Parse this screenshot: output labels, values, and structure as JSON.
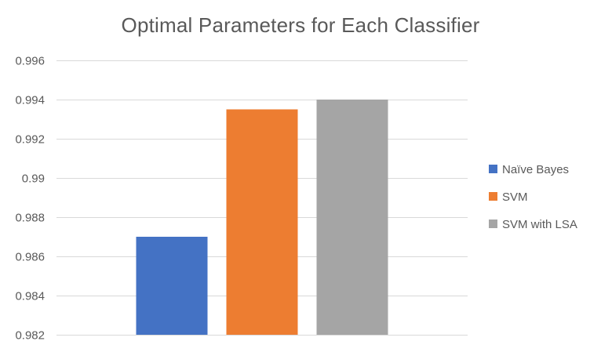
{
  "chart_data": {
    "type": "bar",
    "title": "Optimal Parameters for Each Classifier",
    "xlabel": "",
    "ylabel": "",
    "categories": [
      ""
    ],
    "series": [
      {
        "name": "Naïve Bayes",
        "values": [
          0.987
        ],
        "color": "#4472C4"
      },
      {
        "name": "SVM",
        "values": [
          0.9935
        ],
        "color": "#ED7D31"
      },
      {
        "name": "SVM with LSA",
        "values": [
          0.994
        ],
        "color": "#A5A5A5"
      }
    ],
    "ylim": [
      0.982,
      0.996
    ],
    "yticks": [
      0.982,
      0.984,
      0.986,
      0.988,
      0.99,
      0.992,
      0.994,
      0.996
    ],
    "ytick_labels": [
      "0.982",
      "0.984",
      "0.986",
      "0.988",
      "0.99",
      "0.992",
      "0.994",
      "0.996"
    ],
    "grid": true,
    "legend_position": "right",
    "gridline_color": "#D9D9D9",
    "text_color": "#595959"
  }
}
